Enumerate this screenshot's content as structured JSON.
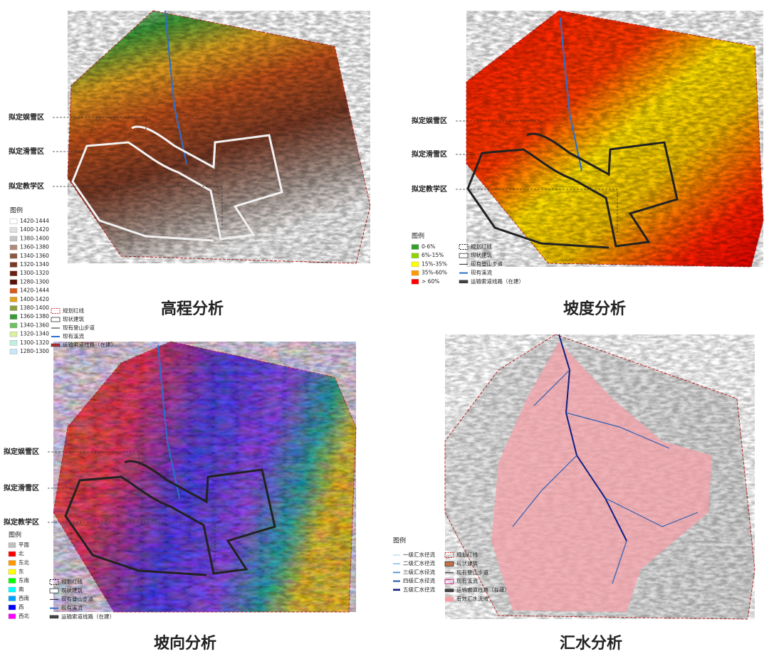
{
  "panels": [
    {
      "title": "高程分析",
      "zone_labels": [
        "拟定娱雪区",
        "拟定滑雪区",
        "拟定教学区"
      ],
      "legend_title": "图例",
      "legend": [
        {
          "label": "1420-1444",
          "color": "#ffffff"
        },
        {
          "label": "1400-1420",
          "color": "#e0e0e0"
        },
        {
          "label": "1380-1400",
          "color": "#c6c6c6"
        },
        {
          "label": "1360-1380",
          "color": "#b08a7a"
        },
        {
          "label": "1340-1360",
          "color": "#8c5a44"
        },
        {
          "label": "1320-1340",
          "color": "#7a3a25"
        },
        {
          "label": "1300-1320",
          "color": "#6a2010"
        },
        {
          "label": "1280-1300",
          "color": "#5a1008"
        },
        {
          "label": "1420-1444",
          "color": "#d55a1e"
        },
        {
          "label": "1400-1420",
          "color": "#e0a020"
        },
        {
          "label": "1380-1400",
          "color": "#8aa040"
        },
        {
          "label": "1360-1380",
          "color": "#3a9a3a"
        },
        {
          "label": "1340-1360",
          "color": "#6cc060"
        },
        {
          "label": "1320-1340",
          "color": "#d8f0a0"
        },
        {
          "label": "1300-1320",
          "color": "#c0f0e0"
        },
        {
          "label": "1280-1300",
          "color": "#c8e8f8"
        }
      ],
      "symbols": [
        "规划红线",
        "现状建筑",
        "现有登山步道",
        "现有溪流",
        "运输索道线路（在建）"
      ]
    },
    {
      "title": "坡度分析",
      "zone_labels": [
        "拟定娱雪区",
        "拟定滑雪区",
        "拟定教学区"
      ],
      "legend_title": "图例",
      "legend": [
        {
          "label": "0-6%",
          "color": "#33a02c"
        },
        {
          "label": "6%-15%",
          "color": "#8fd400"
        },
        {
          "label": "15%-35%",
          "color": "#ffff00"
        },
        {
          "label": "35%-60%",
          "color": "#ff9900"
        },
        {
          "label": "> 60%",
          "color": "#ff0000"
        }
      ],
      "symbols": [
        "规划红线",
        "现状建筑",
        "现有登山步道",
        "现有溪流",
        "运输索道线路（在建）"
      ]
    },
    {
      "title": "坡向分析",
      "zone_labels": [
        "拟定娱雪区",
        "拟定滑雪区",
        "拟定教学区"
      ],
      "legend_title": "图例",
      "legend": [
        {
          "label": "平面",
          "color": "#c0c0c0"
        },
        {
          "label": "北",
          "color": "#ff0000"
        },
        {
          "label": "东北",
          "color": "#ff9900"
        },
        {
          "label": "东",
          "color": "#ffff00"
        },
        {
          "label": "东南",
          "color": "#00ff00"
        },
        {
          "label": "南",
          "color": "#00ffff"
        },
        {
          "label": "西南",
          "color": "#00a0ff"
        },
        {
          "label": "西",
          "color": "#0000ff"
        },
        {
          "label": "西北",
          "color": "#ff00ff"
        }
      ],
      "symbols": [
        "规划红线",
        "现状建筑",
        "现有登山步道",
        "现有溪流",
        "运输索道线路（在建）"
      ]
    },
    {
      "title": "汇水分析",
      "legend_title": "图例",
      "legend": [
        {
          "label": "一级汇水径流",
          "color": "#9fd3ee"
        },
        {
          "label": "二级汇水径流",
          "color": "#7ab8e0"
        },
        {
          "label": "三级汇水径流",
          "color": "#4a90d0"
        },
        {
          "label": "四级汇水径流",
          "color": "#3060b0"
        },
        {
          "label": "五级汇水径流",
          "color": "#102080"
        }
      ],
      "symbols": [
        "规划红线",
        "现状建筑",
        "现有登山步道",
        "现有溪流",
        "运输索道线路（在建）",
        "有效汇水流域"
      ]
    }
  ]
}
